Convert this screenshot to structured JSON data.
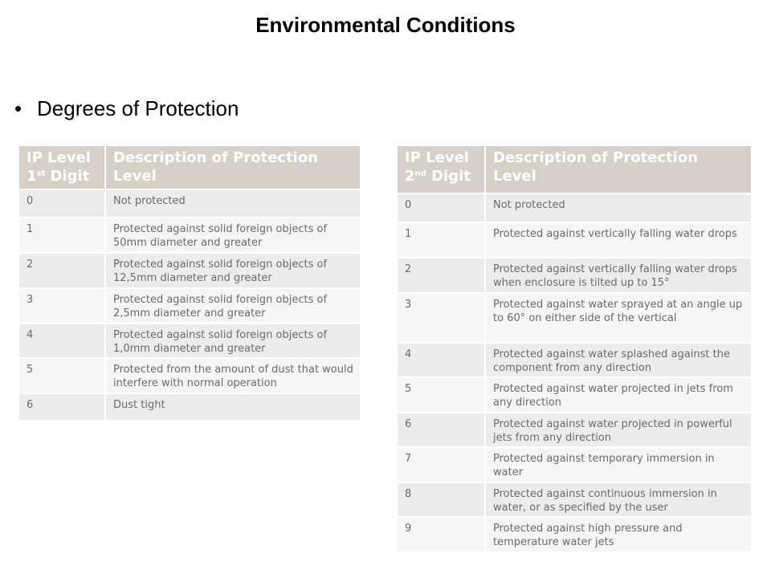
{
  "title": "Environmental Conditions",
  "bullet": "Degrees of Protection",
  "table1": {
    "header": {
      "col1_line1": "IP Level",
      "col1_num": "1",
      "col1_sup": "st",
      "col1_word": "Digit",
      "col2": "Description of Protection Level"
    },
    "rows": [
      {
        "level": "0",
        "desc": "Not protected"
      },
      {
        "level": "1",
        "desc": "Protected against solid foreign objects of 50mm diameter and greater"
      },
      {
        "level": "2",
        "desc": "Protected against solid foreign objects of 12,5mm diameter and greater"
      },
      {
        "level": "3",
        "desc": "Protected against solid foreign objects of 2,5mm diameter and greater"
      },
      {
        "level": "4",
        "desc": "Protected against solid foreign objects of 1,0mm diameter and greater"
      },
      {
        "level": "5",
        "desc": "Protected from the amount of dust that would interfere with normal operation"
      },
      {
        "level": "6",
        "desc": "Dust tight"
      }
    ]
  },
  "table2": {
    "header": {
      "col1_line1": "IP Level",
      "col1_num": "2",
      "col1_sup": "nd",
      "col1_word": "Digit",
      "col2": "Description of Protection Level"
    },
    "rows": [
      {
        "level": "0",
        "desc": "Not protected"
      },
      {
        "level": "1",
        "desc": "Protected against vertically falling water drops"
      },
      {
        "level": "2",
        "desc": "Protected against vertically falling water drops when enclosure is tilted up to 15°"
      },
      {
        "level": "3",
        "desc": "Protected against water sprayed at an angle up to 60° on either side of the vertical"
      },
      {
        "level": "4",
        "desc": "Protected against water splashed against the component from any direction"
      },
      {
        "level": "5",
        "desc": "Protected against water projected in jets from any direction"
      },
      {
        "level": "6",
        "desc": "Protected against water projected in powerful jets from any direction"
      },
      {
        "level": "7",
        "desc": "Protected against temporary immersion in water"
      },
      {
        "level": "8",
        "desc": "Protected against continuous immersion in water, or as specified by the user"
      },
      {
        "level": "9",
        "desc": "Protected against high pressure and temperature water jets"
      }
    ]
  },
  "colors": {
    "header_bg": "#d6d0c9",
    "row_odd": "#ececec",
    "row_even": "#f5f5f5",
    "text": "#6b6b6b"
  }
}
